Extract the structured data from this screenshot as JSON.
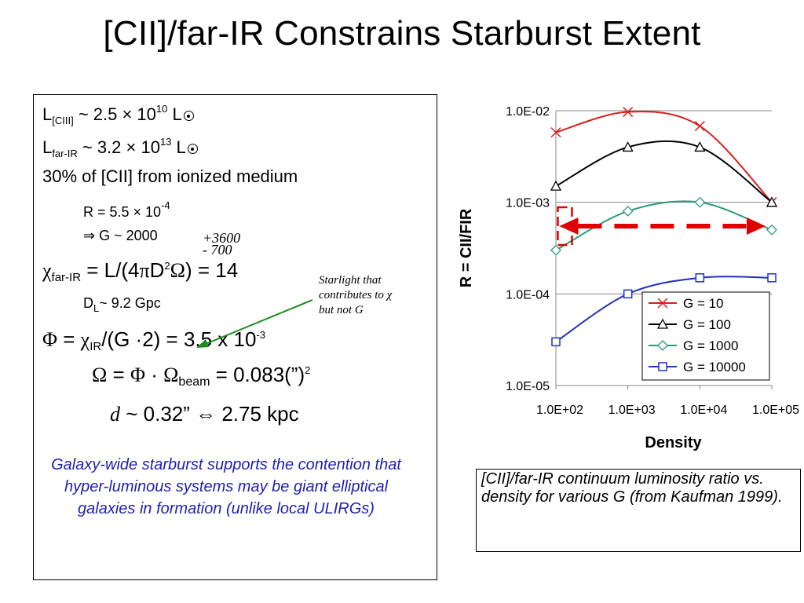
{
  "slide_title": "[CII]/far-IR Constrains Starburst Extent",
  "left_box": {
    "line1": {
      "L": "L",
      "sub": "[CIII]",
      "text": " ~ 2.5 × 10",
      "sup": "10",
      "unit": " L"
    },
    "line2": {
      "L": "L",
      "sub": "far-IR",
      "text": " ~ 3.2 × 10",
      "sup": "13",
      "unit": " L"
    },
    "line3": "30% of [CII] from ionized medium",
    "line4": {
      "text": "R = 5.5 × 10",
      "sup": "-4"
    },
    "line5": "⇒ G ~ 2000",
    "hand_plus": "+3600",
    "hand_minus": "- 700",
    "line6": {
      "chi": "χ",
      "sub": "far-IR",
      "text_a": " = L/(4",
      "pi": "π",
      "text_b": "D",
      "sup": "2",
      "omega": "Ω",
      "text_c": ") = 14"
    },
    "line7": {
      "D": "D",
      "sub": "L",
      "text": "~ 9.2 Gpc"
    },
    "line8": {
      "phi": "Φ",
      "text_a": " = ",
      "chi": "χ",
      "sub": "IR",
      "text_b": "/(G ·2) = 3.5 x 10",
      "sup": "-3"
    },
    "line9": {
      "omega": "Ω",
      "text_a": " = ",
      "phi": "Φ",
      "dot": " · ",
      "omega2": "Ω",
      "sub": "beam",
      "text_b": " = 0.083(”)",
      "sup": "2"
    },
    "line10": {
      "d": "d",
      "text": " ~ 0.32” ⇔ 2.75 kpc"
    },
    "starlight_note": [
      "Starlight that",
      "contributes to χ",
      "but not G"
    ],
    "conclusion": "Galaxy-wide starburst supports the contention that hyper-luminous systems may be giant elliptical galaxies in formation (unlike local ULIRGs)"
  },
  "caption": "[CII]/far-IR continuum luminosity ratio vs. density for various G (from Kaufman 1999).",
  "colors": {
    "text": "#000000",
    "conclusion_blue": "#1f1fb0",
    "arrow_green": "#1a8a1a",
    "marker_red": "#e00000"
  },
  "chart_data": {
    "type": "line",
    "xlabel": "Density",
    "ylabel": "R = CII/FIR",
    "x_scale": "log",
    "y_scale": "log",
    "xlim": [
      100,
      100000
    ],
    "ylim": [
      1e-05,
      0.01
    ],
    "x_ticks": [
      "1.0E+02",
      "1.0E+03",
      "1.0E+04",
      "1.0E+05"
    ],
    "y_ticks": [
      "1.0E-02",
      "1.0E-03",
      "1.0E-04",
      "1.0E-05"
    ],
    "legend_position": "bottom-right",
    "series": [
      {
        "name": "G = 10",
        "color": "#d42020",
        "marker": "x",
        "x": [
          100,
          1000,
          10000,
          100000
        ],
        "y": [
          0.0058,
          0.0097,
          0.0068,
          0.001
        ]
      },
      {
        "name": "G = 100",
        "color": "#000000",
        "marker": "triangle",
        "x": [
          100,
          1000,
          10000,
          100000
        ],
        "y": [
          0.0015,
          0.004,
          0.004,
          0.001
        ]
      },
      {
        "name": "G = 1000",
        "color": "#2a9a7a",
        "marker": "diamond",
        "x": [
          100,
          1000,
          10000,
          100000
        ],
        "y": [
          0.0003,
          0.0008,
          0.001,
          0.0005
        ]
      },
      {
        "name": "G = 10000",
        "color": "#2233bb",
        "marker": "square",
        "x": [
          100,
          1000,
          10000,
          100000
        ],
        "y": [
          3e-05,
          0.0001,
          0.00015,
          0.00015
        ]
      }
    ],
    "annotation": {
      "type": "double-arrow",
      "color": "#e00000",
      "y": 0.00055,
      "x_range": [
        130,
        100000
      ]
    }
  }
}
